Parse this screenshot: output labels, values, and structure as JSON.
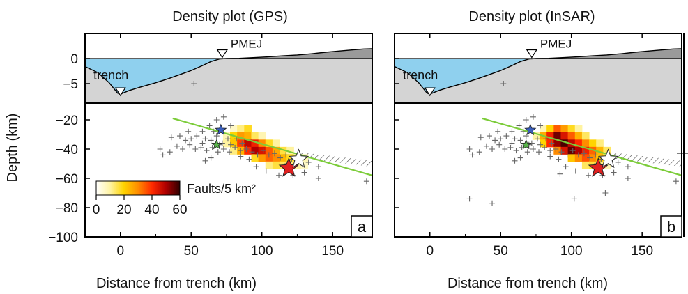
{
  "figure": {
    "ylabel": "Depth (km)",
    "colorbar": {
      "label": "Faults/5 km²",
      "ticks": [
        "0",
        "20",
        "40",
        "60"
      ],
      "range": [
        0,
        60
      ],
      "colors": [
        "#ffffff",
        "#fff3a0",
        "#ffd400",
        "#ff8c00",
        "#ff2a00",
        "#b00000",
        "#300000"
      ]
    },
    "markers": {
      "trench_label": "trench",
      "station_label": "PMEJ",
      "ocean_color": "#8fd0ee",
      "crust_color": "#d4d4d4",
      "fault_line_color": "#7ccc3a",
      "star_white": "#ffffff",
      "star_red": "#e02020",
      "star_blue": "#3a5fc0",
      "star_green": "#59b84a"
    }
  },
  "chart_data": [
    {
      "type": "heatmap",
      "title": "Density plot (GPS)",
      "panel_label": "a",
      "xlabel": "Distance from trench (km)",
      "ylabel": "Depth (km)",
      "xlim": [
        -25,
        178
      ],
      "x_ticks": [
        "0",
        "50",
        "100",
        "150"
      ],
      "y_ticks_upper": [
        "0",
        "−5"
      ],
      "y_ticks_lower": [
        "−20",
        "−40",
        "−60",
        "−80",
        "−100"
      ],
      "density_cells": [
        {
          "x": 80,
          "y": -26,
          "v": 6
        },
        {
          "x": 85,
          "y": -26,
          "v": 12
        },
        {
          "x": 90,
          "y": -26,
          "v": 18
        },
        {
          "x": 75,
          "y": -31,
          "v": 8
        },
        {
          "x": 80,
          "y": -31,
          "v": 20
        },
        {
          "x": 85,
          "y": -31,
          "v": 28
        },
        {
          "x": 90,
          "y": -31,
          "v": 25
        },
        {
          "x": 95,
          "y": -31,
          "v": 14
        },
        {
          "x": 100,
          "y": -31,
          "v": 8
        },
        {
          "x": 75,
          "y": -36,
          "v": 10
        },
        {
          "x": 80,
          "y": -36,
          "v": 22
        },
        {
          "x": 85,
          "y": -36,
          "v": 38
        },
        {
          "x": 90,
          "y": -36,
          "v": 48
        },
        {
          "x": 95,
          "y": -36,
          "v": 42
        },
        {
          "x": 100,
          "y": -36,
          "v": 30
        },
        {
          "x": 105,
          "y": -36,
          "v": 18
        },
        {
          "x": 110,
          "y": -36,
          "v": 10
        },
        {
          "x": 80,
          "y": -41,
          "v": 12
        },
        {
          "x": 85,
          "y": -41,
          "v": 25
        },
        {
          "x": 90,
          "y": -41,
          "v": 40
        },
        {
          "x": 95,
          "y": -41,
          "v": 50
        },
        {
          "x": 100,
          "y": -41,
          "v": 45
        },
        {
          "x": 105,
          "y": -41,
          "v": 35
        },
        {
          "x": 110,
          "y": -41,
          "v": 26
        },
        {
          "x": 115,
          "y": -41,
          "v": 16
        },
        {
          "x": 120,
          "y": -41,
          "v": 10
        },
        {
          "x": 95,
          "y": -46,
          "v": 18
        },
        {
          "x": 100,
          "y": -46,
          "v": 28
        },
        {
          "x": 105,
          "y": -46,
          "v": 34
        },
        {
          "x": 110,
          "y": -46,
          "v": 30
        },
        {
          "x": 115,
          "y": -46,
          "v": 24
        },
        {
          "x": 120,
          "y": -46,
          "v": 18
        },
        {
          "x": 125,
          "y": -46,
          "v": 12
        },
        {
          "x": 130,
          "y": -46,
          "v": 8
        },
        {
          "x": 105,
          "y": -51,
          "v": 12
        },
        {
          "x": 110,
          "y": -51,
          "v": 16
        },
        {
          "x": 115,
          "y": -51,
          "v": 14
        },
        {
          "x": 120,
          "y": -51,
          "v": 12
        },
        {
          "x": 125,
          "y": -51,
          "v": 10
        },
        {
          "x": 130,
          "y": -51,
          "v": 6
        }
      ]
    },
    {
      "type": "heatmap",
      "title": "Density plot (InSAR)",
      "panel_label": "b",
      "xlabel": "Distance from trench (km)",
      "ylabel": "",
      "xlim": [
        -25,
        178
      ],
      "x_ticks": [
        "0",
        "50",
        "100",
        "150"
      ],
      "y_ticks_upper": [],
      "y_ticks_lower": [],
      "density_cells": [
        {
          "x": 80,
          "y": -26,
          "v": 8
        },
        {
          "x": 85,
          "y": -26,
          "v": 20
        },
        {
          "x": 90,
          "y": -26,
          "v": 35
        },
        {
          "x": 95,
          "y": -26,
          "v": 28
        },
        {
          "x": 100,
          "y": -26,
          "v": 18
        },
        {
          "x": 105,
          "y": -26,
          "v": 10
        },
        {
          "x": 75,
          "y": -31,
          "v": 10
        },
        {
          "x": 80,
          "y": -31,
          "v": 26
        },
        {
          "x": 85,
          "y": -31,
          "v": 42
        },
        {
          "x": 90,
          "y": -31,
          "v": 55
        },
        {
          "x": 95,
          "y": -31,
          "v": 45
        },
        {
          "x": 100,
          "y": -31,
          "v": 35
        },
        {
          "x": 105,
          "y": -31,
          "v": 25
        },
        {
          "x": 110,
          "y": -31,
          "v": 14
        },
        {
          "x": 80,
          "y": -36,
          "v": 20
        },
        {
          "x": 85,
          "y": -36,
          "v": 40
        },
        {
          "x": 90,
          "y": -36,
          "v": 52
        },
        {
          "x": 95,
          "y": -36,
          "v": 58
        },
        {
          "x": 100,
          "y": -36,
          "v": 48
        },
        {
          "x": 105,
          "y": -36,
          "v": 40
        },
        {
          "x": 110,
          "y": -36,
          "v": 30
        },
        {
          "x": 115,
          "y": -36,
          "v": 20
        },
        {
          "x": 120,
          "y": -36,
          "v": 12
        },
        {
          "x": 90,
          "y": -41,
          "v": 30
        },
        {
          "x": 95,
          "y": -41,
          "v": 45
        },
        {
          "x": 100,
          "y": -41,
          "v": 56
        },
        {
          "x": 105,
          "y": -41,
          "v": 50
        },
        {
          "x": 110,
          "y": -41,
          "v": 42
        },
        {
          "x": 115,
          "y": -41,
          "v": 34
        },
        {
          "x": 120,
          "y": -41,
          "v": 24
        },
        {
          "x": 125,
          "y": -41,
          "v": 14
        },
        {
          "x": 100,
          "y": -46,
          "v": 22
        },
        {
          "x": 105,
          "y": -46,
          "v": 30
        },
        {
          "x": 110,
          "y": -46,
          "v": 36
        },
        {
          "x": 115,
          "y": -46,
          "v": 30
        },
        {
          "x": 120,
          "y": -46,
          "v": 22
        },
        {
          "x": 125,
          "y": -46,
          "v": 14
        },
        {
          "x": 110,
          "y": -51,
          "v": 14
        },
        {
          "x": 115,
          "y": -51,
          "v": 16
        },
        {
          "x": 120,
          "y": -51,
          "v": 12
        },
        {
          "x": 125,
          "y": -51,
          "v": 8
        }
      ]
    }
  ],
  "shared": {
    "seismicity": [
      [
        52,
        -5
      ],
      [
        68,
        -20
      ],
      [
        73,
        -18
      ],
      [
        63,
        -24
      ],
      [
        78,
        -24
      ],
      [
        48,
        -28
      ],
      [
        58,
        -28
      ],
      [
        66,
        -28
      ],
      [
        36,
        -32
      ],
      [
        42,
        -31
      ],
      [
        46,
        -34
      ],
      [
        50,
        -33
      ],
      [
        54,
        -31
      ],
      [
        58,
        -36
      ],
      [
        60,
        -33
      ],
      [
        64,
        -34
      ],
      [
        68,
        -31
      ],
      [
        72,
        -36
      ],
      [
        76,
        -33
      ],
      [
        82,
        -33
      ],
      [
        86,
        -36
      ],
      [
        40,
        -38
      ],
      [
        44,
        -40
      ],
      [
        49,
        -37
      ],
      [
        53,
        -40
      ],
      [
        57,
        -39
      ],
      [
        61,
        -41
      ],
      [
        65,
        -39
      ],
      [
        69,
        -42
      ],
      [
        73,
        -40
      ],
      [
        77,
        -42
      ],
      [
        81,
        -39
      ],
      [
        85,
        -41
      ],
      [
        89,
        -40
      ],
      [
        93,
        -42
      ],
      [
        97,
        -44
      ],
      [
        101,
        -41
      ],
      [
        105,
        -44
      ],
      [
        109,
        -43
      ],
      [
        113,
        -46
      ],
      [
        117,
        -44
      ],
      [
        121,
        -47
      ],
      [
        127,
        -46
      ],
      [
        133,
        -49
      ],
      [
        140,
        -52
      ],
      [
        30,
        -44
      ],
      [
        28,
        -40
      ],
      [
        35,
        -42
      ],
      [
        64,
        -46
      ],
      [
        60,
        -48
      ],
      [
        96,
        -52
      ],
      [
        103,
        -55
      ],
      [
        112,
        -58
      ],
      [
        122,
        -58
      ],
      [
        140,
        -60
      ],
      [
        174,
        -62
      ],
      [
        130,
        -56
      ],
      [
        118,
        -50
      ],
      [
        91,
        -47
      ],
      [
        85,
        -45
      ],
      [
        78,
        -37
      ],
      [
        70,
        -37
      ]
    ],
    "seismicity_b_extra": [
      [
        28,
        -74
      ],
      [
        44,
        -77
      ],
      [
        102,
        -74
      ],
      [
        124,
        -70
      ],
      [
        92,
        -57
      ]
    ],
    "fault_line": [
      [
        37,
        -19
      ],
      [
        178,
        -58
      ]
    ],
    "interface_band": [
      [
        126,
        -42
      ],
      [
        178,
        -48
      ]
    ],
    "hypocenters": {
      "white": [
        126,
        -47
      ],
      "red": [
        119,
        -53
      ],
      "blue": [
        71,
        -27
      ],
      "green": [
        68,
        -37
      ]
    },
    "topography": [
      [
        -25,
        -1.6
      ],
      [
        -16,
        -2.8
      ],
      [
        -8,
        -4.8
      ],
      [
        -2,
        -6.9
      ],
      [
        0,
        -7.1
      ],
      [
        6,
        -6.4
      ],
      [
        14,
        -5.7
      ],
      [
        24,
        -4.9
      ],
      [
        34,
        -4.0
      ],
      [
        42,
        -3.2
      ],
      [
        50,
        -2.4
      ],
      [
        58,
        -1.4
      ],
      [
        64,
        -0.6
      ],
      [
        70,
        -0.1
      ],
      [
        75,
        0.0
      ],
      [
        84,
        0.05
      ],
      [
        95,
        0.2
      ],
      [
        105,
        0.35
      ],
      [
        115,
        0.55
      ],
      [
        125,
        0.7
      ],
      [
        135,
        0.95
      ],
      [
        145,
        1.25
      ],
      [
        155,
        1.5
      ],
      [
        165,
        1.75
      ],
      [
        172,
        1.9
      ],
      [
        178,
        1.95
      ]
    ],
    "trench_x": 0,
    "station_x": 72
  }
}
